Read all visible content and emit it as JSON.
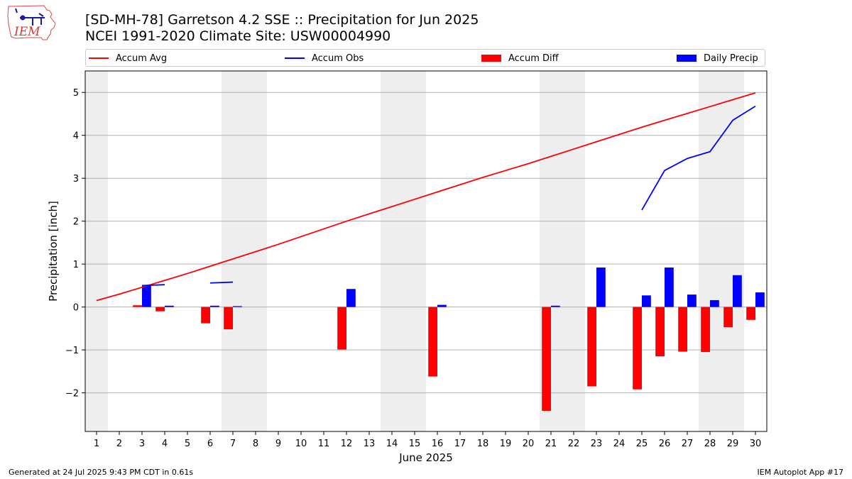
{
  "header": {
    "title_line1": "[SD-MH-78] Garretson 4.2 SSE :: Precipitation for Jun 2025",
    "title_line2": "NCEI 1991-2020 Climate Site: USW00004990",
    "logo_text": "IEM"
  },
  "legend": {
    "items": [
      {
        "label": "Accum Avg",
        "color": "#ff0000",
        "kind": "line"
      },
      {
        "label": "Accum Obs",
        "color": "#0000ff",
        "kind": "line"
      },
      {
        "label": "Accum Diff",
        "color": "#ff0000",
        "kind": "box"
      },
      {
        "label": "Daily Precip",
        "color": "#0000ff",
        "kind": "box"
      }
    ]
  },
  "footer": {
    "left": "Generated at 24 Jul 2025 9:43 PM CDT in 0.61s",
    "right": "IEM Autoplot App #17"
  },
  "chart_data": {
    "type": "bar",
    "xlabel": "June 2025",
    "ylabel": "Precipitation [inch]",
    "ylim": [
      -2.9,
      5.5
    ],
    "xlim": [
      0.5,
      30.5
    ],
    "yticks": [
      -2,
      -1,
      0,
      1,
      2,
      3,
      4,
      5
    ],
    "grid": true,
    "legend_position": "top",
    "weekend_shading_days": [
      1,
      7,
      8,
      14,
      15,
      21,
      22,
      28,
      29
    ],
    "categories": [
      "1",
      "2",
      "3",
      "4",
      "5",
      "6",
      "7",
      "8",
      "9",
      "10",
      "11",
      "12",
      "13",
      "14",
      "15",
      "16",
      "17",
      "18",
      "19",
      "20",
      "21",
      "22",
      "23",
      "24",
      "25",
      "26",
      "27",
      "28",
      "29",
      "30"
    ],
    "series": [
      {
        "name": "Accum Avg",
        "type": "line",
        "color": "#ff0000",
        "values": [
          0.15,
          0.3,
          0.46,
          0.62,
          0.78,
          0.95,
          1.12,
          1.29,
          1.46,
          1.64,
          1.82,
          2.0,
          2.17,
          2.34,
          2.51,
          2.68,
          2.85,
          3.02,
          3.18,
          3.34,
          3.51,
          3.68,
          3.85,
          4.02,
          4.19,
          4.35,
          4.51,
          4.67,
          4.83,
          4.99
        ]
      },
      {
        "name": "Accum Obs",
        "type": "line",
        "color": "#0000ff",
        "segments": [
          {
            "x": [
              3,
              4
            ],
            "y": [
              0.5,
              0.52
            ]
          },
          {
            "x": [
              6,
              7
            ],
            "y": [
              0.56,
              0.58
            ]
          },
          {
            "x": [
              25,
              26,
              27,
              28,
              29,
              30
            ],
            "y": [
              2.26,
              3.18,
              3.46,
              3.62,
              4.35,
              4.68
            ]
          }
        ]
      },
      {
        "name": "Accum Diff",
        "type": "bar",
        "color": "#ff0000",
        "values": [
          null,
          null,
          0.04,
          -0.1,
          null,
          -0.38,
          -0.52,
          null,
          null,
          null,
          null,
          -0.99,
          null,
          null,
          null,
          -1.62,
          null,
          null,
          null,
          null,
          -2.42,
          null,
          -1.85,
          null,
          -1.92,
          -1.15,
          -1.04,
          -1.05,
          -0.47,
          -0.3
        ]
      },
      {
        "name": "Daily Precip",
        "type": "bar",
        "color": "#0000ff",
        "values": [
          null,
          null,
          0.5,
          0.03,
          null,
          0.03,
          0.02,
          null,
          null,
          null,
          null,
          0.42,
          null,
          null,
          null,
          0.05,
          null,
          null,
          null,
          null,
          0.03,
          null,
          0.92,
          null,
          0.27,
          0.92,
          0.29,
          0.16,
          0.74,
          0.34
        ]
      }
    ]
  }
}
